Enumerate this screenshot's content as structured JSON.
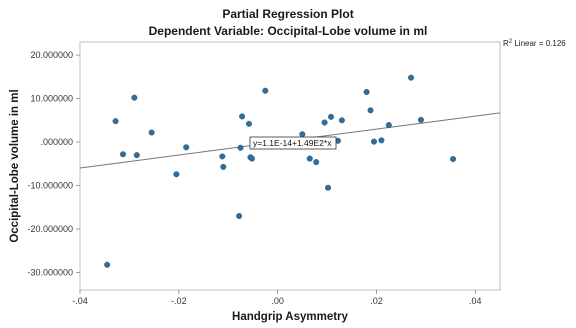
{
  "title": "Partial Regression Plot",
  "subtitle": "Dependent Variable: Occipital-Lobe volume in ml",
  "chart_data": {
    "type": "scatter",
    "xlabel": "Handgrip Asymmetry",
    "ylabel": "Occipital-Lobe volume in ml",
    "xlim": [
      -0.04,
      0.045
    ],
    "ylim": [
      -34,
      23
    ],
    "x_ticks": [
      -0.04,
      -0.02,
      0.0,
      0.02,
      0.04
    ],
    "x_tick_labels": [
      "-.04",
      "-.02",
      ".00",
      ".02",
      ".04"
    ],
    "y_ticks": [
      20,
      10,
      0,
      -10,
      -20,
      -30
    ],
    "y_tick_labels": [
      "20.000000",
      "10.000000",
      ".000000",
      "-10.000000",
      "-20.000000",
      "-30.000000"
    ],
    "grid": false,
    "point_color": "#2e6f9e",
    "fit_line_color": "#777777",
    "fit_line": {
      "intercept": 0.0,
      "slope": 149,
      "equation": "y=1.1E-14+1.49E2*x"
    },
    "r2_label": {
      "prefix": "R",
      "sup": "2",
      "suffix": " Linear = 0.126"
    },
    "points": [
      {
        "x": -0.0345,
        "y": -28.2
      },
      {
        "x": -0.0328,
        "y": 4.8
      },
      {
        "x": -0.0313,
        "y": -2.8
      },
      {
        "x": -0.029,
        "y": 10.2
      },
      {
        "x": -0.0285,
        "y": -3.0
      },
      {
        "x": -0.0255,
        "y": 2.2
      },
      {
        "x": -0.0205,
        "y": -7.4
      },
      {
        "x": -0.0185,
        "y": -1.2
      },
      {
        "x": -0.0112,
        "y": -3.3
      },
      {
        "x": -0.011,
        "y": -5.7
      },
      {
        "x": -0.0078,
        "y": -17.0
      },
      {
        "x": -0.0072,
        "y": 5.9
      },
      {
        "x": -0.0075,
        "y": -1.3
      },
      {
        "x": -0.0058,
        "y": 4.2
      },
      {
        "x": -0.0055,
        "y": -3.5
      },
      {
        "x": -0.0052,
        "y": -3.8
      },
      {
        "x": -0.0025,
        "y": 11.8
      },
      {
        "x": 0.005,
        "y": 1.8
      },
      {
        "x": 0.0065,
        "y": -3.8
      },
      {
        "x": 0.0078,
        "y": -4.6
      },
      {
        "x": 0.0095,
        "y": 4.5
      },
      {
        "x": 0.0102,
        "y": -10.5
      },
      {
        "x": 0.0108,
        "y": 5.8
      },
      {
        "x": 0.0122,
        "y": 0.3
      },
      {
        "x": 0.013,
        "y": 5.0
      },
      {
        "x": 0.018,
        "y": 11.5
      },
      {
        "x": 0.0188,
        "y": 7.3
      },
      {
        "x": 0.0195,
        "y": 0.1
      },
      {
        "x": 0.021,
        "y": 0.4
      },
      {
        "x": 0.0225,
        "y": 3.9
      },
      {
        "x": 0.027,
        "y": 14.8
      },
      {
        "x": 0.029,
        "y": 5.1
      },
      {
        "x": 0.0355,
        "y": -3.9
      }
    ]
  }
}
